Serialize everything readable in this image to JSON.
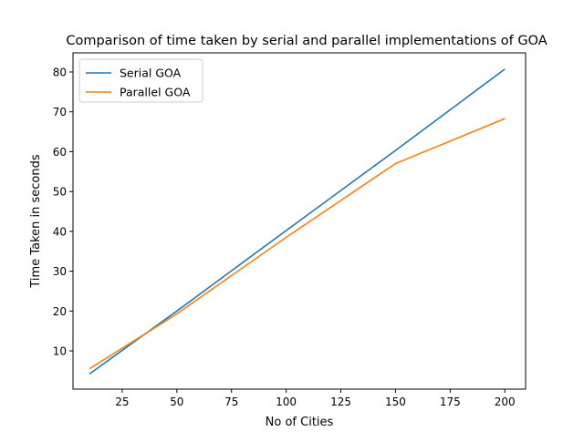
{
  "chart_data": {
    "type": "line",
    "title": "Comparison of time taken by serial and parallel implementations of GOA",
    "xlabel": "No of Cities",
    "ylabel": "Time Taken in seconds",
    "xlim": [
      2.5,
      209.5
    ],
    "ylim": [
      0.4,
      84.8
    ],
    "xticks": [
      25,
      50,
      75,
      100,
      125,
      150,
      175,
      200
    ],
    "yticks": [
      10,
      20,
      30,
      40,
      50,
      60,
      70,
      80
    ],
    "grid": false,
    "legend_position": "top-left",
    "series": [
      {
        "name": "Serial GOA",
        "color": "#1f77b4",
        "x": [
          10,
          50,
          100,
          150,
          200
        ],
        "y": [
          4.2,
          20.0,
          40.2,
          60.3,
          80.7
        ]
      },
      {
        "name": "Parallel GOA",
        "color": "#ff7f0e",
        "x": [
          10,
          50,
          100,
          150,
          200
        ],
        "y": [
          5.5,
          19.3,
          38.5,
          57.0,
          68.3
        ]
      }
    ]
  }
}
